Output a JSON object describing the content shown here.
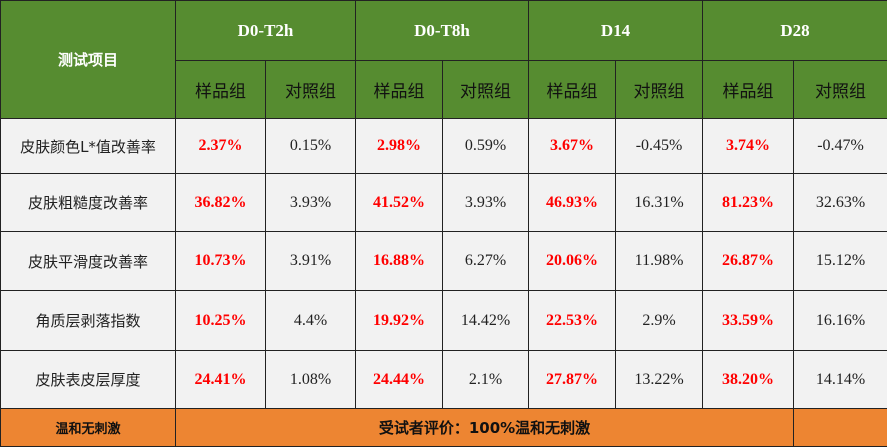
{
  "header": {
    "item_label": "测试项目",
    "periods": [
      "D0-T2h",
      "D0-T8h",
      "D14",
      "D28"
    ],
    "sample_label": "样品组",
    "control_label": "对照组"
  },
  "rows": [
    {
      "label": "皮肤颜色L*值改善率",
      "values": [
        "2.37%",
        "0.15%",
        "2.98%",
        "0.59%",
        "3.67%",
        "-0.45%",
        "3.74%",
        "-0.47%"
      ]
    },
    {
      "label": "皮肤粗糙度改善率",
      "values": [
        "36.82%",
        "3.93%",
        "41.52%",
        "3.93%",
        "46.93%",
        "16.31%",
        "81.23%",
        "32.63%"
      ]
    },
    {
      "label": "皮肤平滑度改善率",
      "values": [
        "10.73%",
        "3.91%",
        "16.88%",
        "6.27%",
        "20.06%",
        "11.98%",
        "26.87%",
        "15.12%"
      ]
    },
    {
      "label": "角质层剥落指数",
      "values": [
        "10.25%",
        "4.4%",
        "19.92%",
        "14.42%",
        "22.53%",
        "2.9%",
        "33.59%",
        "16.16%"
      ]
    },
    {
      "label": "皮肤表皮层厚度",
      "values": [
        "24.41%",
        "1.08%",
        "24.44%",
        "2.1%",
        "27.87%",
        "13.22%",
        "38.20%",
        "14.14%"
      ]
    }
  ],
  "footer": {
    "label": "温和无刺激",
    "evaluation": "受试者评价：100%温和无刺激"
  },
  "colors": {
    "header": "#568c30",
    "footer": "#ed8532",
    "highlight": "#ff0000"
  }
}
